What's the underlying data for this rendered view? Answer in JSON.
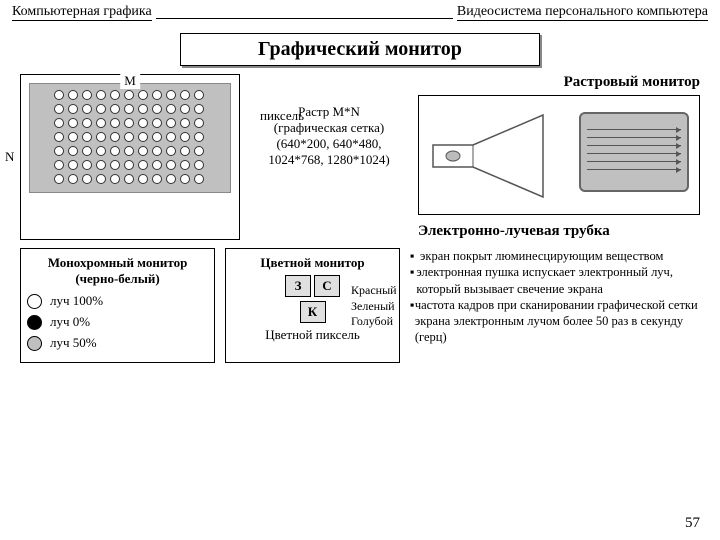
{
  "header": {
    "left": "Компьютерная графика",
    "right": "Видеосистема персонального компьютера"
  },
  "title": "Графический монитор",
  "raster": {
    "m_label": "M",
    "n_label": "N",
    "pixel_label": "пиксель",
    "cols": 11,
    "rows": 7,
    "grid_bg": "#c0c0c0",
    "dot_fill": "#ffffff"
  },
  "raster_desc": {
    "l1": "Растр M*N",
    "l2": "(графическая сетка)",
    "l3": "(640*200, 640*480,",
    "l4": "1024*768, 1280*1024)"
  },
  "crt": {
    "title": "Растровый монитор",
    "subtitle": "Электронно-лучевая трубка",
    "screen_bg": "#c0c0c0",
    "scan_lines": 6
  },
  "mono": {
    "title1": "Монохромный монитор",
    "title2": "(черно-белый)",
    "items": [
      {
        "label": "луч 100%",
        "fill": "#ffffff"
      },
      {
        "label": "луч 0%",
        "fill": "#000000"
      },
      {
        "label": "луч 50%",
        "fill": "#c0c0c0"
      }
    ]
  },
  "color": {
    "title": "Цветной монитор",
    "cells": [
      {
        "label": "З",
        "bg": "#e0e0e0"
      },
      {
        "label": "С",
        "bg": "#e0e0e0"
      },
      {
        "label": "К",
        "bg": "#e0e0e0"
      }
    ],
    "caption": "Цветной пиксель",
    "names": {
      "r": "Красный",
      "g": "Зеленый",
      "b": "Голубой"
    }
  },
  "bullets": {
    "b1": "экран покрыт люминесцирующим веществом",
    "b2": "электронная пушка испускает электронный луч, который вызывает свечение экрана",
    "b3": "частота кадров при сканировании графической сетки экрана электронным лучом более 50 раз в секунду (герц)"
  },
  "page": "57"
}
